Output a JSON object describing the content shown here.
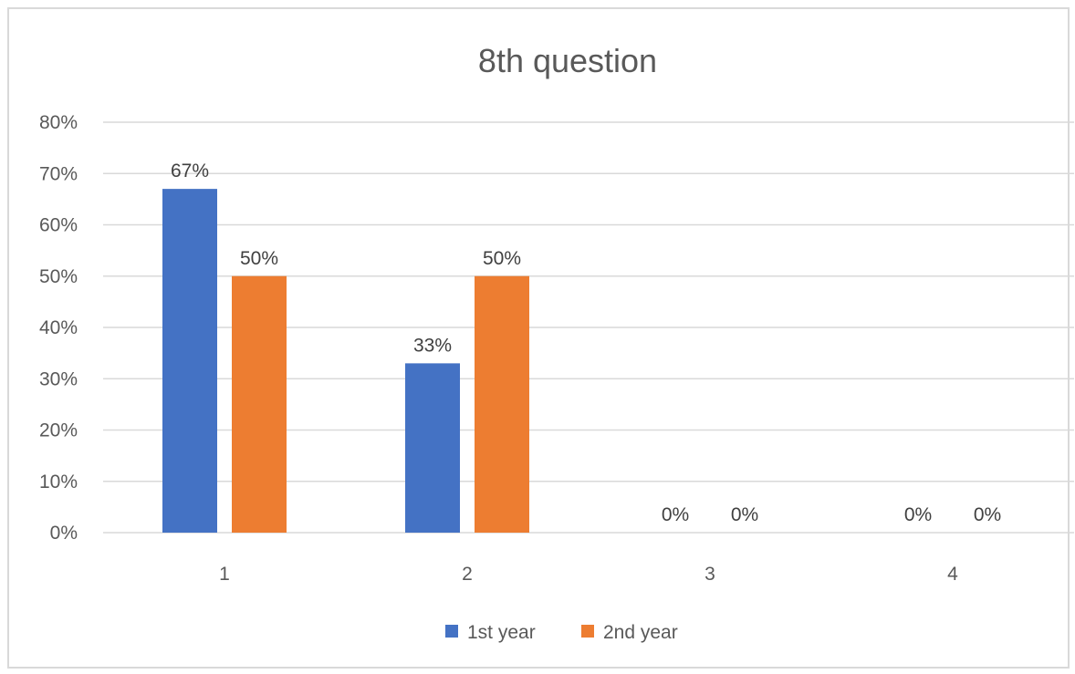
{
  "chart_data": {
    "type": "bar",
    "title": "8th question",
    "xlabel": "",
    "ylabel": "",
    "categories": [
      "1",
      "2",
      "3",
      "4"
    ],
    "series": [
      {
        "name": "1st year",
        "values": [
          67,
          33,
          0,
          0
        ],
        "labels": [
          "67%",
          "33%",
          "0%",
          "0%"
        ],
        "color": "#4472C4"
      },
      {
        "name": "2nd year",
        "values": [
          50,
          50,
          0,
          0
        ],
        "labels": [
          "50%",
          "50%",
          "0%",
          "0%"
        ],
        "color": "#ED7D31"
      }
    ],
    "ylim": [
      0,
      80
    ],
    "yticks": [
      "0%",
      "10%",
      "20%",
      "30%",
      "40%",
      "50%",
      "60%",
      "70%",
      "80%"
    ],
    "grid": true,
    "legend": "bottom"
  }
}
